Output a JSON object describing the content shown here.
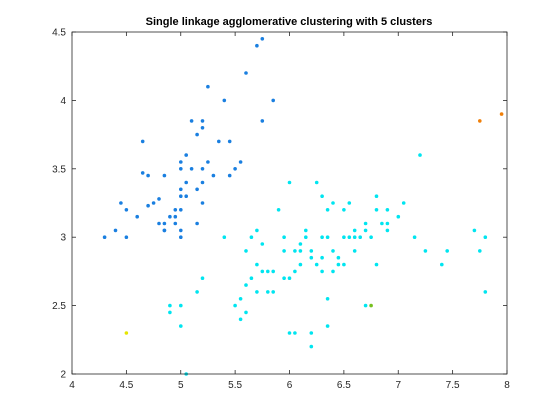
{
  "chart_data": {
    "type": "scatter",
    "title": "Single linkage agglomerative clustering with 5 clusters",
    "xlabel": "",
    "ylabel": "",
    "xlim": [
      4,
      8
    ],
    "ylim": [
      2,
      4.5
    ],
    "xticks": [
      "4",
      "4.5",
      "5",
      "5.5",
      "6",
      "6.5",
      "7",
      "7.5",
      "8"
    ],
    "yticks": [
      "2",
      "2.5",
      "3",
      "3.5",
      "4",
      "4.5"
    ],
    "xtick_values": [
      4,
      4.5,
      5,
      5.5,
      6,
      6.5,
      7,
      7.5,
      8
    ],
    "ytick_values": [
      2,
      2.5,
      3,
      3.5,
      4,
      4.5
    ],
    "grid": false,
    "legend": "none",
    "series": [
      {
        "color": "#1a7fe0",
        "points": [
          [
            4.3,
            3.0
          ],
          [
            4.4,
            3.05
          ],
          [
            4.45,
            3.25
          ],
          [
            4.5,
            3.0
          ],
          [
            4.5,
            3.2
          ],
          [
            4.6,
            3.15
          ],
          [
            4.65,
            3.7
          ],
          [
            4.7,
            3.23
          ],
          [
            4.75,
            3.25
          ],
          [
            4.8,
            3.28
          ],
          [
            4.8,
            3.1
          ],
          [
            4.85,
            3.05
          ],
          [
            4.85,
            3.45
          ],
          [
            4.85,
            3.05
          ],
          [
            4.9,
            3.15
          ],
          [
            4.95,
            3.2
          ],
          [
            4.95,
            3.1
          ],
          [
            5.0,
            3.2
          ],
          [
            5.0,
            3.35
          ],
          [
            5.0,
            3.5
          ],
          [
            5.0,
            3.55
          ],
          [
            5.0,
            3.05
          ],
          [
            5.05,
            3.4
          ],
          [
            5.1,
            3.5
          ],
          [
            5.1,
            3.85
          ],
          [
            5.15,
            3.75
          ],
          [
            5.2,
            3.8
          ],
          [
            5.2,
            3.5
          ],
          [
            5.25,
            3.55
          ],
          [
            5.25,
            4.1
          ],
          [
            5.35,
            3.7
          ],
          [
            5.4,
            4.0
          ],
          [
            5.45,
            3.45
          ],
          [
            5.5,
            3.5
          ],
          [
            5.55,
            3.55
          ],
          [
            5.6,
            4.2
          ],
          [
            5.7,
            4.4
          ],
          [
            5.75,
            3.85
          ],
          [
            5.85,
            4.0
          ],
          [
            5.75,
            4.45
          ],
          [
            4.65,
            3.47
          ],
          [
            4.7,
            3.45
          ],
          [
            5.15,
            3.35
          ],
          [
            5.2,
            3.25
          ],
          [
            5.3,
            3.45
          ],
          [
            5.45,
            3.7
          ],
          [
            5.05,
            3.3
          ],
          [
            5.0,
            3.0
          ],
          [
            4.95,
            3.15
          ],
          [
            5.05,
            3.6
          ],
          [
            5.2,
            3.4
          ],
          [
            5.2,
            3.85
          ],
          [
            5.15,
            3.1
          ],
          [
            5.0,
            3.3
          ],
          [
            4.85,
            3.1
          ]
        ]
      },
      {
        "color": "#00e5f0",
        "points": [
          [
            4.9,
            2.5
          ],
          [
            4.9,
            2.45
          ],
          [
            5.0,
            2.5
          ],
          [
            5.0,
            2.35
          ],
          [
            5.05,
            2.0
          ],
          [
            5.15,
            2.6
          ],
          [
            5.2,
            2.7
          ],
          [
            5.4,
            3.0
          ],
          [
            5.5,
            2.5
          ],
          [
            5.55,
            2.55
          ],
          [
            5.55,
            2.4
          ],
          [
            5.6,
            2.45
          ],
          [
            5.6,
            2.65
          ],
          [
            5.6,
            2.9
          ],
          [
            5.65,
            3.0
          ],
          [
            5.65,
            2.7
          ],
          [
            5.7,
            2.8
          ],
          [
            5.7,
            2.6
          ],
          [
            5.7,
            3.05
          ],
          [
            5.75,
            2.75
          ],
          [
            5.75,
            2.95
          ],
          [
            5.8,
            2.6
          ],
          [
            5.8,
            2.75
          ],
          [
            5.85,
            2.6
          ],
          [
            5.85,
            2.75
          ],
          [
            5.9,
            3.2
          ],
          [
            5.95,
            3.0
          ],
          [
            6.0,
            3.4
          ],
          [
            6.0,
            2.3
          ],
          [
            6.05,
            2.3
          ],
          [
            6.05,
            2.9
          ],
          [
            6.1,
            2.95
          ],
          [
            6.1,
            2.9
          ],
          [
            6.15,
            3.0
          ],
          [
            6.2,
            2.9
          ],
          [
            6.2,
            2.3
          ],
          [
            6.25,
            3.4
          ],
          [
            6.25,
            2.8
          ],
          [
            6.3,
            2.75
          ],
          [
            6.3,
            3.0
          ],
          [
            6.3,
            3.3
          ],
          [
            6.35,
            2.35
          ],
          [
            6.35,
            2.55
          ],
          [
            6.35,
            3.2
          ],
          [
            6.4,
            3.25
          ],
          [
            6.4,
            2.9
          ],
          [
            6.45,
            2.85
          ],
          [
            6.5,
            3.0
          ],
          [
            6.5,
            3.2
          ],
          [
            6.5,
            2.8
          ],
          [
            6.55,
            3.25
          ],
          [
            6.6,
            2.9
          ],
          [
            6.6,
            3.0
          ],
          [
            6.65,
            3.0
          ],
          [
            6.7,
            3.1
          ],
          [
            6.7,
            2.5
          ],
          [
            6.75,
            3.0
          ],
          [
            6.8,
            3.2
          ],
          [
            6.8,
            3.3
          ],
          [
            6.85,
            3.1
          ],
          [
            6.9,
            3.1
          ],
          [
            6.9,
            3.05
          ],
          [
            7.0,
            3.15
          ],
          [
            7.05,
            3.25
          ],
          [
            7.15,
            3.0
          ],
          [
            7.2,
            3.6
          ],
          [
            7.25,
            2.9
          ],
          [
            7.4,
            2.8
          ],
          [
            7.45,
            2.9
          ],
          [
            7.7,
            3.05
          ],
          [
            7.75,
            2.9
          ],
          [
            7.8,
            3.0
          ],
          [
            7.8,
            2.6
          ],
          [
            6.55,
            3.0
          ],
          [
            6.45,
            2.8
          ],
          [
            6.1,
            2.8
          ],
          [
            6.2,
            2.85
          ],
          [
            6.05,
            2.75
          ],
          [
            6.4,
            2.75
          ],
          [
            5.95,
            2.9
          ],
          [
            6.0,
            2.7
          ],
          [
            6.15,
            3.05
          ],
          [
            6.3,
            2.85
          ],
          [
            6.7,
            3.05
          ],
          [
            6.8,
            2.8
          ],
          [
            6.9,
            3.2
          ],
          [
            6.6,
            3.05
          ],
          [
            6.35,
            3.0
          ],
          [
            6.2,
            2.2
          ],
          [
            5.95,
            2.7
          ]
        ]
      },
      {
        "color": "#f07f09",
        "points": [
          [
            7.75,
            3.85
          ],
          [
            7.95,
            3.9
          ]
        ]
      },
      {
        "color": "#e5e500",
        "points": [
          [
            4.5,
            2.3
          ]
        ]
      },
      {
        "color": "#77c020",
        "points": [
          [
            6.75,
            2.5
          ]
        ]
      }
    ]
  }
}
